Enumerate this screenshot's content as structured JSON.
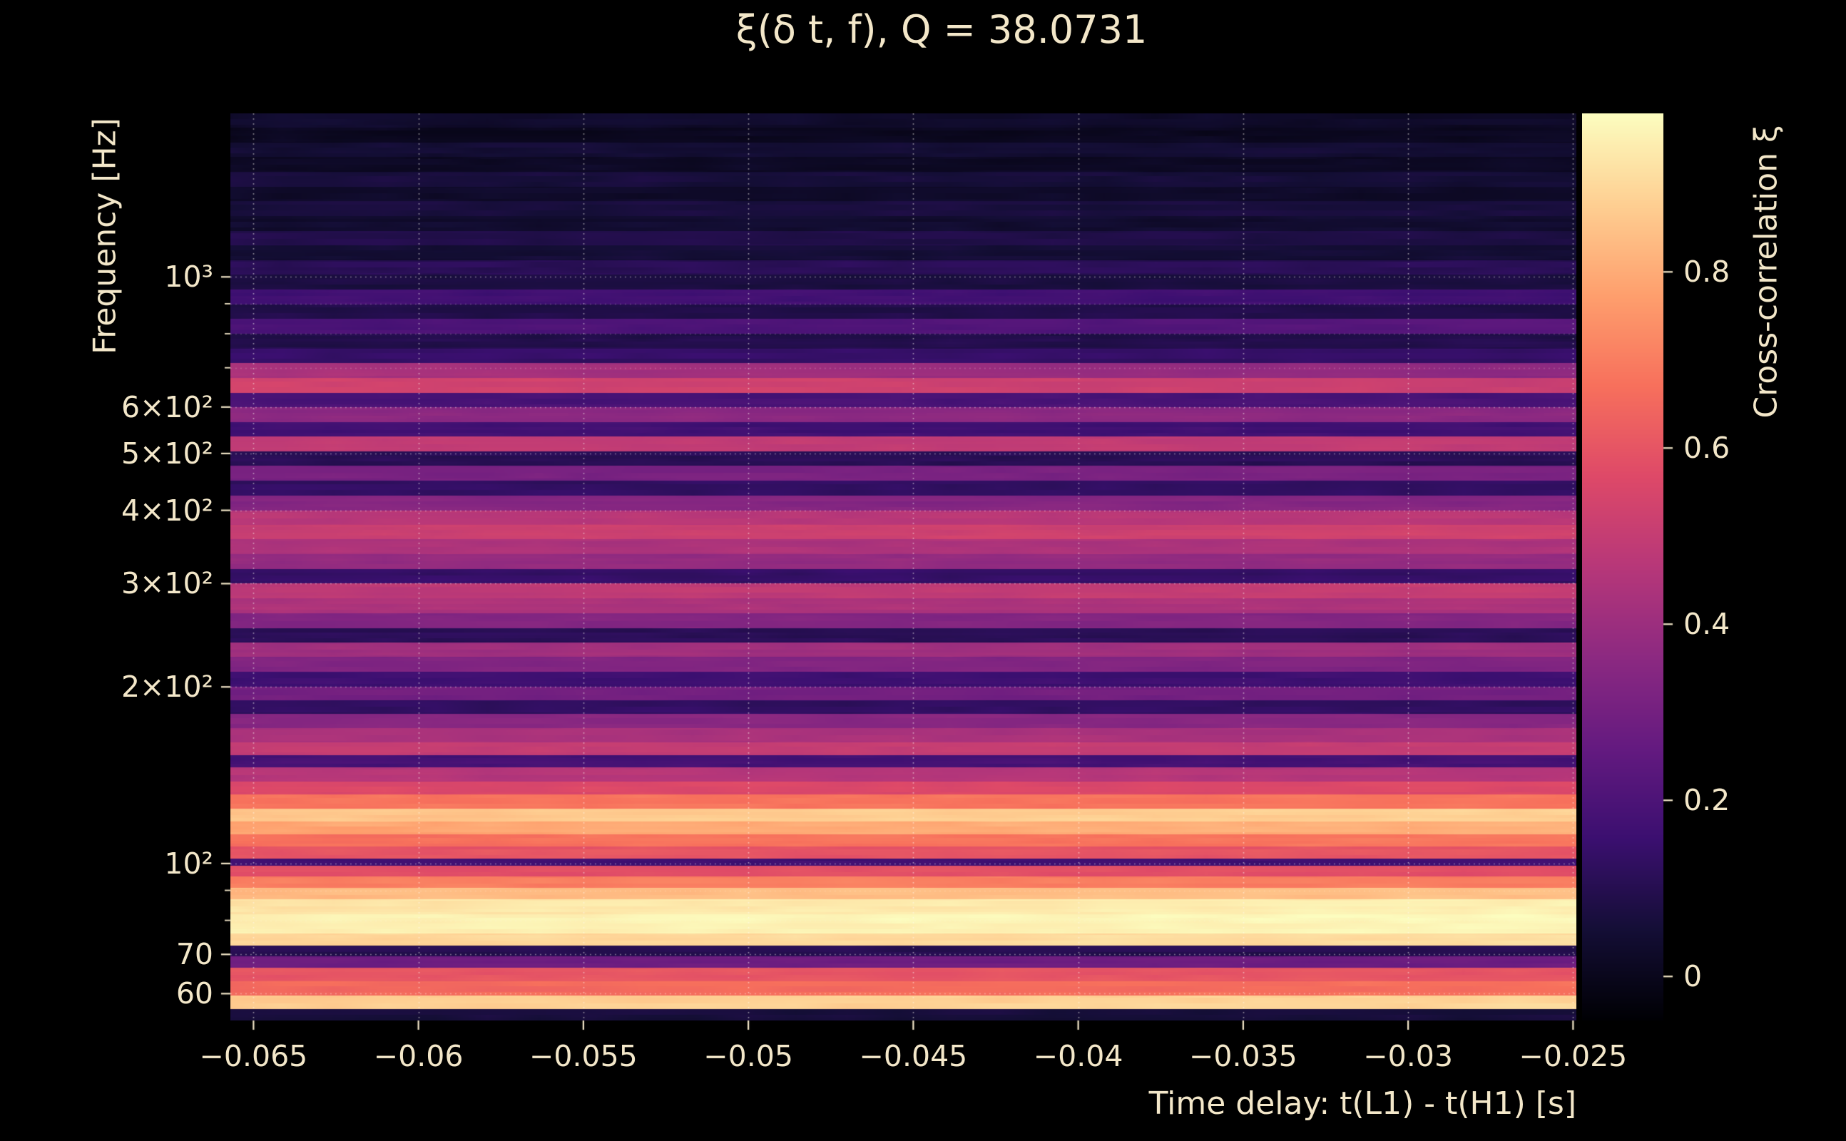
{
  "theme": {
    "background": "#000000",
    "text_color": "#f3e7c9",
    "grid_color": "#fffcf2"
  },
  "chart_data": {
    "type": "heatmap",
    "title": "ξ(δ t, f), Q = 38.0731",
    "Q": 38.0731,
    "xlabel": "Time delay: t(L1) - t(H1) [s]",
    "ylabel": "Frequency [Hz]",
    "colorbar_label": "Cross-correlation ξ",
    "x_range": [
      -0.0657,
      -0.0249
    ],
    "x_ticks": [
      -0.065,
      -0.06,
      -0.055,
      -0.05,
      -0.045,
      -0.04,
      -0.035,
      -0.03,
      -0.025
    ],
    "x_tick_labels": [
      "−0.065",
      "−0.06",
      "−0.055",
      "−0.05",
      "−0.045",
      "−0.04",
      "−0.035",
      "−0.03",
      "−0.025"
    ],
    "y_scale": "log",
    "y_range": [
      54,
      1900
    ],
    "y_ticks": [
      60,
      70,
      100,
      200,
      300,
      400,
      500,
      600,
      1000
    ],
    "y_tick_labels": [
      "60",
      "70",
      "10²",
      "2×10²",
      "3×10²",
      "4×10²",
      "5×10²",
      "6×10²",
      "10³"
    ],
    "y_minor_ticks": [
      80,
      90,
      700,
      800,
      900
    ],
    "color_range": [
      -0.05,
      0.98
    ],
    "colorbar_ticks": [
      0,
      0.2,
      0.4,
      0.6,
      0.8
    ],
    "colorbar_tick_labels": [
      "0",
      "0.2",
      "0.4",
      "0.6",
      "0.8"
    ],
    "colormap": "magma",
    "colormap_stops": [
      [
        0.0,
        "#000004"
      ],
      [
        0.1,
        "#140e36"
      ],
      [
        0.2,
        "#3b0f70"
      ],
      [
        0.3,
        "#641a80"
      ],
      [
        0.4,
        "#8c2981"
      ],
      [
        0.5,
        "#b73779"
      ],
      [
        0.6,
        "#de4968"
      ],
      [
        0.7,
        "#f7705c"
      ],
      [
        0.8,
        "#fe9f6d"
      ],
      [
        0.9,
        "#fecf92"
      ],
      [
        1.0,
        "#fcfdbf"
      ]
    ],
    "grid": true,
    "bands_format": "each band is [f_low_Hz, f_high_Hz, cross_correlation_xi, xi_slope_left_to_right]; xi is nearly constant in time delay",
    "bands": [
      [
        54,
        56.5,
        0.06,
        0
      ],
      [
        56.5,
        59.5,
        0.88,
        0.02
      ],
      [
        59.5,
        63,
        0.66,
        0.02
      ],
      [
        63,
        66.5,
        0.6,
        0
      ],
      [
        66.5,
        69.5,
        0.28,
        0
      ],
      [
        69.5,
        72.5,
        0.1,
        0
      ],
      [
        72.5,
        76,
        0.9,
        0.02
      ],
      [
        76,
        82,
        0.96,
        0.02
      ],
      [
        82,
        87,
        0.94,
        0.03
      ],
      [
        87,
        91,
        0.84,
        0.02
      ],
      [
        91,
        95,
        0.7,
        0
      ],
      [
        95,
        99,
        0.58,
        0
      ],
      [
        99,
        102,
        0.16,
        0
      ],
      [
        102,
        107,
        0.6,
        0
      ],
      [
        107,
        112,
        0.68,
        0.02
      ],
      [
        112,
        118,
        0.8,
        0.03
      ],
      [
        118,
        124,
        0.87,
        0.03
      ],
      [
        124,
        131,
        0.68,
        0
      ],
      [
        131,
        138,
        0.56,
        0
      ],
      [
        138,
        146,
        0.46,
        0
      ],
      [
        146,
        153,
        0.18,
        0
      ],
      [
        153,
        161,
        0.5,
        0
      ],
      [
        161,
        170,
        0.43,
        0
      ],
      [
        170,
        180,
        0.35,
        0
      ],
      [
        180,
        190,
        0.13,
        0
      ],
      [
        190,
        200,
        0.3,
        0
      ],
      [
        200,
        212,
        0.16,
        0
      ],
      [
        212,
        225,
        0.33,
        0
      ],
      [
        225,
        238,
        0.41,
        0
      ],
      [
        238,
        252,
        0.11,
        0
      ],
      [
        252,
        267,
        0.34,
        0
      ],
      [
        267,
        283,
        0.44,
        0
      ],
      [
        283,
        300,
        0.49,
        0.03
      ],
      [
        300,
        318,
        0.14,
        0
      ],
      [
        318,
        337,
        0.38,
        0
      ],
      [
        337,
        357,
        0.44,
        0
      ],
      [
        357,
        378,
        0.52,
        0.02
      ],
      [
        378,
        400,
        0.47,
        0
      ],
      [
        400,
        424,
        0.34,
        0
      ],
      [
        424,
        449,
        0.13,
        0
      ],
      [
        449,
        476,
        0.31,
        0
      ],
      [
        476,
        504,
        0.11,
        0
      ],
      [
        504,
        534,
        0.49,
        0
      ],
      [
        534,
        566,
        0.17,
        0
      ],
      [
        566,
        600,
        0.36,
        0
      ],
      [
        600,
        635,
        0.19,
        0
      ],
      [
        635,
        673,
        0.52,
        -0.03
      ],
      [
        673,
        713,
        0.4,
        -0.08
      ],
      [
        713,
        755,
        0.14,
        0
      ],
      [
        755,
        800,
        0.09,
        0
      ],
      [
        800,
        848,
        0.21,
        0.04
      ],
      [
        848,
        898,
        0.09,
        0
      ],
      [
        898,
        951,
        0.17,
        0
      ],
      [
        951,
        1008,
        0.07,
        0
      ],
      [
        1008,
        1068,
        0.11,
        0
      ],
      [
        1068,
        1131,
        0.05,
        0
      ],
      [
        1131,
        1198,
        0.09,
        -0.02
      ],
      [
        1198,
        1270,
        0.04,
        0
      ],
      [
        1270,
        1345,
        0.07,
        0
      ],
      [
        1345,
        1425,
        0.03,
        0
      ],
      [
        1425,
        1510,
        0.06,
        -0.02
      ],
      [
        1510,
        1600,
        0.02,
        0
      ],
      [
        1600,
        1695,
        0.05,
        0
      ],
      [
        1695,
        1795,
        0.01,
        0
      ],
      [
        1795,
        1900,
        0.03,
        -0.02
      ]
    ]
  }
}
